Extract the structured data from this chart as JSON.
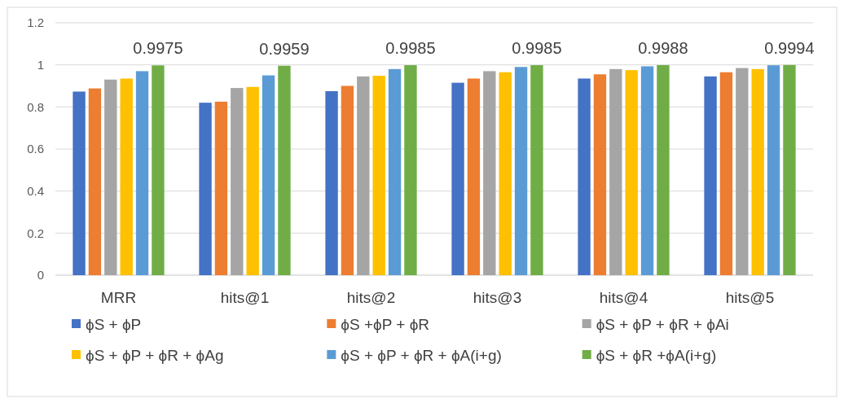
{
  "chart_data": {
    "type": "bar",
    "categories": [
      "MRR",
      "hits@1",
      "hits@2",
      "hits@3",
      "hits@4",
      "hits@5"
    ],
    "series": [
      {
        "name": "ϕS + ϕP",
        "color": "#4472c4",
        "values": [
          0.873,
          0.82,
          0.875,
          0.915,
          0.935,
          0.945
        ]
      },
      {
        "name": "ϕS +ϕP + ϕR",
        "color": "#ed7d31",
        "values": [
          0.888,
          0.825,
          0.9,
          0.935,
          0.955,
          0.965
        ]
      },
      {
        "name": "ϕS + ϕP + ϕR + ϕAi",
        "color": "#a5a5a5",
        "values": [
          0.93,
          0.89,
          0.945,
          0.97,
          0.98,
          0.985
        ]
      },
      {
        "name": "ϕS + ϕP + ϕR + ϕAg",
        "color": "#ffc000",
        "values": [
          0.935,
          0.895,
          0.948,
          0.965,
          0.975,
          0.98
        ]
      },
      {
        "name": "ϕS + ϕP + ϕR + ϕA(i+g)",
        "color": "#5b9bd5",
        "values": [
          0.97,
          0.95,
          0.98,
          0.99,
          0.993,
          0.998
        ]
      },
      {
        "name": "ϕS + ϕR +ϕA(i+g)",
        "color": "#70ad47",
        "values": [
          0.9975,
          0.9959,
          0.9985,
          0.9985,
          0.9988,
          0.9994
        ],
        "value_labels": [
          "0.9975",
          "0.9959",
          "0.9985",
          "0.9985",
          "0.9988",
          "0.9994"
        ]
      }
    ],
    "ylim": [
      0,
      1.2
    ],
    "yticks": [
      0,
      {
        "value": 0.2,
        "label": "0.2"
      },
      {
        "value": 0.4,
        "label": "0.4"
      },
      {
        "value": 0.6,
        "label": "0.6"
      },
      {
        "value": 0.8,
        "label": "0.8"
      },
      1,
      {
        "value": 1.2,
        "label": "1.2"
      }
    ],
    "grid": "y",
    "legend": "bottom"
  }
}
